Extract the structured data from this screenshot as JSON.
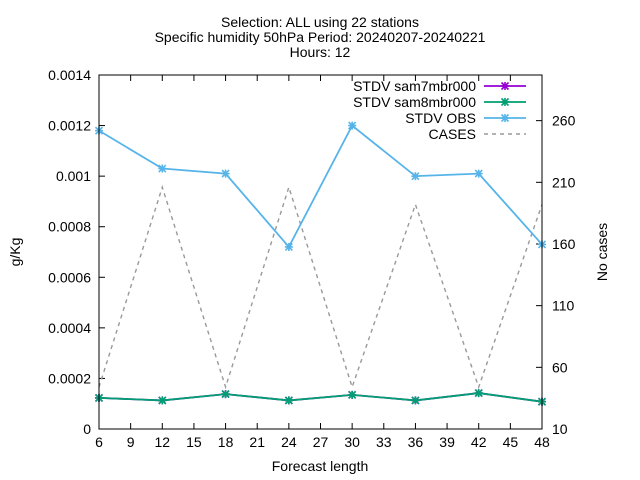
{
  "chart_data": {
    "type": "line",
    "title_lines": [
      "Selection: ALL using    22 stations",
      "Specific humidity 50hPa   Period: 20240207-20240221",
      "Hours: 12"
    ],
    "xlabel": "Forecast length",
    "ylabel": "g/Kg",
    "y2label": "No cases",
    "xlim": [
      6,
      48
    ],
    "ylim": [
      0,
      0.0014
    ],
    "y2lim": [
      10,
      297
    ],
    "x_ticks": [
      6,
      9,
      12,
      15,
      18,
      21,
      24,
      27,
      30,
      33,
      36,
      39,
      42,
      45,
      48
    ],
    "y_ticks": [
      0,
      0.0002,
      0.0004,
      0.0006,
      0.0008,
      0.001,
      0.0012,
      0.0014
    ],
    "y_tick_labels": [
      "0",
      "0.0002",
      "0.0004",
      "0.0006",
      "0.0008",
      "0.001",
      "0.0012",
      "0.0014"
    ],
    "y2_ticks": [
      10,
      60,
      110,
      160,
      210,
      260
    ],
    "x": [
      6,
      12,
      18,
      24,
      30,
      36,
      42,
      48
    ],
    "legend_position": "top-right",
    "series": [
      {
        "name": "STDV sam7mbr000",
        "axis": "y",
        "color": "#9400d3",
        "style": "solid",
        "marker": "x-star",
        "values": [
          0.000123,
          0.000113,
          0.000138,
          0.000113,
          0.000135,
          0.000113,
          0.000142,
          0.000108
        ]
      },
      {
        "name": "STDV sam8mbr000",
        "axis": "y",
        "color": "#009e73",
        "style": "solid",
        "marker": "x-star",
        "values": [
          0.000123,
          0.000113,
          0.000138,
          0.000113,
          0.000135,
          0.000113,
          0.000142,
          0.000108
        ]
      },
      {
        "name": "STDV OBS",
        "axis": "y",
        "color": "#56b4e9",
        "style": "solid",
        "marker": "x-star",
        "values": [
          0.00118,
          0.00103,
          0.00101,
          0.00072,
          0.0012,
          0.001,
          0.00101,
          0.00073
        ]
      },
      {
        "name": "CASES",
        "axis": "y2",
        "color": "#999999",
        "style": "dashed",
        "marker": "none",
        "values": [
          44,
          206,
          44,
          206,
          44,
          192,
          44,
          192
        ]
      }
    ]
  }
}
